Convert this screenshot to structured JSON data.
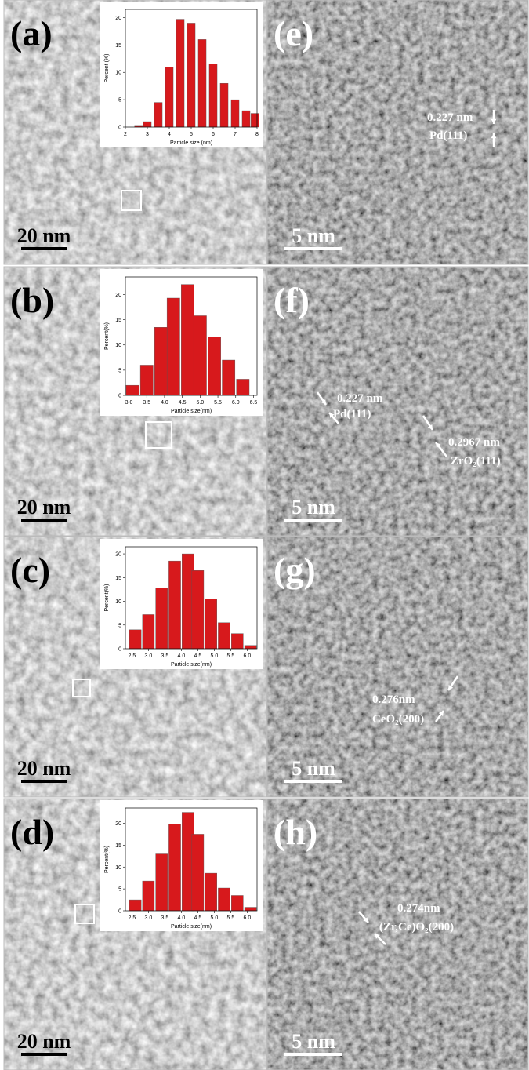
{
  "chart_data": [
    {
      "type": "bar",
      "x": [
        2.6,
        3.0,
        3.5,
        4.0,
        4.5,
        5.0,
        5.5,
        6.0,
        6.5,
        7.0,
        7.5,
        7.9
      ],
      "values": [
        0.3,
        1,
        4.5,
        11,
        19.7,
        19,
        16,
        11.5,
        8,
        5,
        3,
        2.5
      ],
      "color": "#d7191c",
      "xlim": [
        2,
        8
      ],
      "xticks": [
        2,
        3,
        4,
        5,
        6,
        7,
        8
      ],
      "ylim": [
        0,
        21.5
      ],
      "yticks": [
        0,
        5,
        10,
        15,
        20
      ],
      "xlabel": "Particle size (nm)",
      "ylabel": "Percent (%)"
    },
    {
      "type": "bar",
      "x": [
        3.1,
        3.5,
        3.9,
        4.25,
        4.65,
        5.0,
        5.4,
        5.8,
        6.2
      ],
      "values": [
        2,
        6,
        13.5,
        19.3,
        22,
        15.8,
        11.6,
        7,
        3.2
      ],
      "color": "#d7191c",
      "xlim": [
        2.9,
        6.6
      ],
      "xticks": [
        {
          "value": 3,
          "label": "3.0"
        },
        3.5,
        {
          "value": 4,
          "label": "4.0"
        },
        4.5,
        {
          "value": 5,
          "label": "5.0"
        },
        5.5,
        {
          "value": 6,
          "label": "6.0"
        },
        6.5
      ],
      "ylim": [
        0,
        23.5
      ],
      "yticks": [
        0,
        5,
        10,
        15,
        20
      ],
      "xlabel": "Particle size(nm)",
      "ylabel": "Percent(%)"
    },
    {
      "type": "bar",
      "x": [
        2.6,
        3.0,
        3.4,
        3.8,
        4.2,
        4.5,
        4.9,
        5.3,
        5.7,
        6.1
      ],
      "values": [
        4,
        7.2,
        12.8,
        18.5,
        20,
        16.5,
        10.5,
        5.5,
        3.2,
        0.7
      ],
      "color": "#d7191c",
      "xlim": [
        2.3,
        6.3
      ],
      "xticks": [
        2.5,
        {
          "value": 3,
          "label": "3.0"
        },
        3.5,
        {
          "value": 4,
          "label": "4.0"
        },
        4.5,
        {
          "value": 5,
          "label": "5.0"
        },
        5.5,
        {
          "value": 6,
          "label": "6.0"
        }
      ],
      "ylim": [
        0,
        21.5
      ],
      "yticks": [
        0,
        5,
        10,
        15,
        20
      ],
      "xlabel": "Particle size(nm)",
      "ylabel": "Percent(%)"
    },
    {
      "type": "bar",
      "x": [
        2.6,
        3.0,
        3.4,
        3.8,
        4.2,
        4.5,
        4.9,
        5.3,
        5.7,
        6.1
      ],
      "values": [
        2.5,
        6.8,
        13,
        19.8,
        22.5,
        17.5,
        8.6,
        5.2,
        3.5,
        0.8
      ],
      "color": "#d7191c",
      "xlim": [
        2.3,
        6.3
      ],
      "xticks": [
        2.5,
        {
          "value": 3,
          "label": "3.0"
        },
        3.5,
        {
          "value": 4,
          "label": "4.0"
        },
        4.5,
        {
          "value": 5,
          "label": "5.0"
        },
        5.5,
        {
          "value": 6,
          "label": "6.0"
        }
      ],
      "ylim": [
        0,
        23.5
      ],
      "yticks": [
        0,
        5,
        10,
        15,
        20
      ],
      "xlabel": "Particle size(nm)",
      "ylabel": "Percent(%)"
    }
  ],
  "panels": [
    {
      "label": "(a)",
      "scale": "20 nm"
    },
    {
      "label": "(b)",
      "scale": "20 nm"
    },
    {
      "label": "(c)",
      "scale": "20 nm"
    },
    {
      "label": "(d)",
      "scale": "20 nm"
    },
    {
      "label": "(e)",
      "scale": "5 nm",
      "annotations": [
        "0.227 nm",
        "Pd(111)"
      ]
    },
    {
      "label": "(f)",
      "scale": "5 nm",
      "annotations": [
        "0.227 nm",
        "Pd(111)",
        "0.2967 nm",
        "ZrO₂(111)"
      ]
    },
    {
      "label": "(g)",
      "scale": "5 nm",
      "annotations": [
        "0.276nm",
        "CeO₂(200)"
      ]
    },
    {
      "label": "(h)",
      "scale": "5 nm",
      "annotations": [
        "0.274nm",
        "(Zr,Ce)O₂(200)"
      ]
    }
  ]
}
